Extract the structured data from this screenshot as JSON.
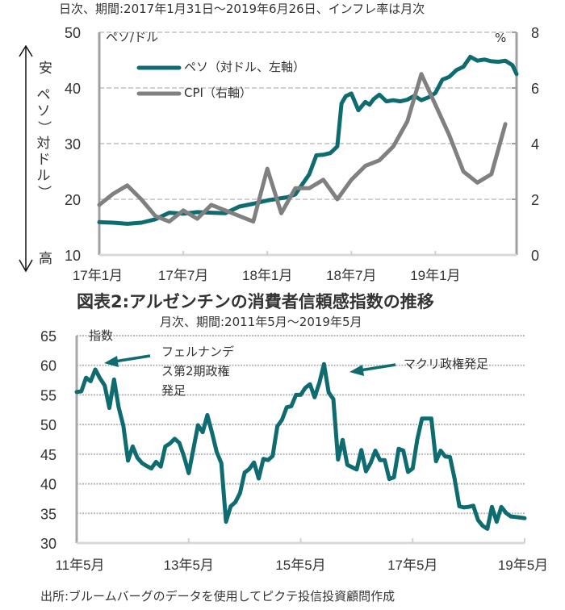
{
  "chart_data": [
    {
      "type": "line",
      "subtitle": "日次、期間:2017年1月31日～2019年6月26日、インフレ率は月次",
      "left_unit": "ペソ/ドル",
      "right_unit": "%",
      "left_axis_label": "（ペソ）対ドル）",
      "left_axis_label_chars": [
        "ペ",
        "ソ",
        "）",
        "対",
        "ド",
        "ル",
        "）"
      ],
      "cheap_label": "安",
      "expensive_label": "高",
      "ylim_left": [
        10,
        50
      ],
      "ylim_right": [
        0,
        8
      ],
      "yticks_left": [
        "50",
        "40",
        "30",
        "20",
        "10"
      ],
      "yticks_right": [
        "8",
        "6",
        "4",
        "2",
        "0"
      ],
      "xticks": [
        "17年1月",
        "17年7月",
        "18年1月",
        "18年7月",
        "19年1月"
      ],
      "grid": true,
      "legend_position": "top-left",
      "x_unit": "months since 2017-01",
      "xlim": [
        0,
        29.8
      ],
      "series": [
        {
          "name": "ペソ（対ドル、左軸）",
          "color": "#0e6b6f",
          "axis": "left",
          "x": [
            0,
            1,
            2,
            3,
            4,
            5,
            6,
            7,
            8,
            9,
            10,
            11,
            12,
            13,
            13.5,
            14,
            15,
            15.5,
            16,
            16.5,
            17,
            17.3,
            17.6,
            18,
            18.5,
            19,
            19.3,
            19.6,
            20,
            20.5,
            21,
            21.5,
            22,
            22.5,
            23,
            23.5,
            24,
            24.5,
            25,
            25.5,
            26,
            26.5,
            27,
            27.5,
            28,
            28.5,
            29,
            29.5,
            29.8
          ],
          "values": [
            15.9,
            15.8,
            15.6,
            15.8,
            16.4,
            17.6,
            17.4,
            17.7,
            17.6,
            17.5,
            18.7,
            19.2,
            19.8,
            20.2,
            20.4,
            20.9,
            24.5,
            27.9,
            28.0,
            28.3,
            29.5,
            37.2,
            38.5,
            39.0,
            36.0,
            37.5,
            37.0,
            38.0,
            38.8,
            37.6,
            37.8,
            37.6,
            37.9,
            38.6,
            37.8,
            38.3,
            39.1,
            41.5,
            42.0,
            43.2,
            43.8,
            45.6,
            44.9,
            45.1,
            44.8,
            44.7,
            44.9,
            44.1,
            42.5
          ]
        },
        {
          "name": "CPI（右軸）",
          "color": "#808080",
          "axis": "right",
          "x": [
            0,
            1,
            2,
            3,
            4,
            5,
            6,
            7,
            8,
            9,
            10,
            11,
            12,
            13,
            14,
            15,
            16,
            17,
            18,
            19,
            20,
            21,
            22,
            23,
            24,
            25,
            26,
            27,
            28,
            29
          ],
          "values": [
            1.8,
            2.2,
            2.5,
            2.0,
            1.4,
            1.2,
            1.6,
            1.3,
            1.8,
            1.6,
            1.4,
            1.2,
            3.1,
            1.5,
            2.4,
            2.4,
            2.7,
            2.0,
            2.7,
            3.2,
            3.4,
            3.9,
            4.8,
            6.5,
            5.4,
            4.3,
            3.0,
            2.6,
            2.9,
            4.7
          ]
        }
      ]
    },
    {
      "type": "line",
      "title": "図表2:アルゼンチンの消費者信頼感指数の推移",
      "subtitle": "月次、期間:2011年5月～2019年5月",
      "ylabel": "指数",
      "ylim": [
        30,
        65
      ],
      "yticks": [
        "65",
        "60",
        "55",
        "50",
        "45",
        "40",
        "35",
        "30"
      ],
      "xticks": [
        "11年5月",
        "13年5月",
        "15年5月",
        "17年5月",
        "19年5月"
      ],
      "x_unit": "months since 2011-05",
      "xlim": [
        0,
        96
      ],
      "grid": true,
      "annotations": [
        {
          "text_lines": [
            "フェルナンデ",
            "ス第2期政権",
            "発足"
          ],
          "points_to_month": 3
        },
        {
          "text_lines": [
            "マクリ政権発足"
          ],
          "points_to_month": 55
        }
      ],
      "series": [
        {
          "name": "消費者信頼感指数",
          "color": "#0e6b6f",
          "x": [
            0,
            1,
            2,
            3,
            4,
            5,
            6,
            7,
            8,
            9,
            10,
            11,
            12,
            13,
            14,
            15,
            16,
            17,
            18,
            19,
            20,
            21,
            22,
            23,
            24,
            25,
            26,
            27,
            28,
            29,
            30,
            31,
            32,
            33,
            34,
            35,
            36,
            37,
            38,
            39,
            40,
            41,
            42,
            43,
            44,
            45,
            46,
            47,
            48,
            49,
            50,
            51,
            52,
            53,
            54,
            55,
            56,
            57,
            58,
            59,
            60,
            61,
            62,
            63,
            64,
            65,
            66,
            67,
            68,
            69,
            70,
            71,
            72,
            73,
            74,
            75,
            76,
            77,
            78,
            79,
            80,
            81,
            82,
            83,
            84,
            85,
            86,
            87,
            88,
            89,
            90,
            91,
            92,
            93,
            94,
            95,
            96
          ],
          "values": [
            55.5,
            55.6,
            57.9,
            57.3,
            59.3,
            57.8,
            56.6,
            52.8,
            57.6,
            52.9,
            49.8,
            43.9,
            46.3,
            44.4,
            43.5,
            43.0,
            42.6,
            43.7,
            42.9,
            46.3,
            46.8,
            47.6,
            46.9,
            44.6,
            41.8,
            45.8,
            49.9,
            48.7,
            51.6,
            48.6,
            45.4,
            43.5,
            33.6,
            36.2,
            36.9,
            38.4,
            41.9,
            42.5,
            43.6,
            40.9,
            44.2,
            44.0,
            44.7,
            49.7,
            50.8,
            52.9,
            53.1,
            55.0,
            55.0,
            56.2,
            56.8,
            54.6,
            57.0,
            60.2,
            55.4,
            54.3,
            44.1,
            47.4,
            43.2,
            42.8,
            42.4,
            45.7,
            42.1,
            43.5,
            45.6,
            44.0,
            44.0,
            40.8,
            41.1,
            45.9,
            45.6,
            42.0,
            42.6,
            47.5,
            51.0,
            51.0,
            51.0,
            43.8,
            45.6,
            44.6,
            44.5,
            40.8,
            36.2,
            36.0,
            36.1,
            36.3,
            33.9,
            32.9,
            32.4,
            36.1,
            33.6,
            36.1,
            35.1,
            34.5,
            34.4,
            34.3,
            34.2
          ]
        }
      ]
    }
  ],
  "source_note": "出所:ブルームバーグのデータを使用してピクテ投信投資顧問作成"
}
